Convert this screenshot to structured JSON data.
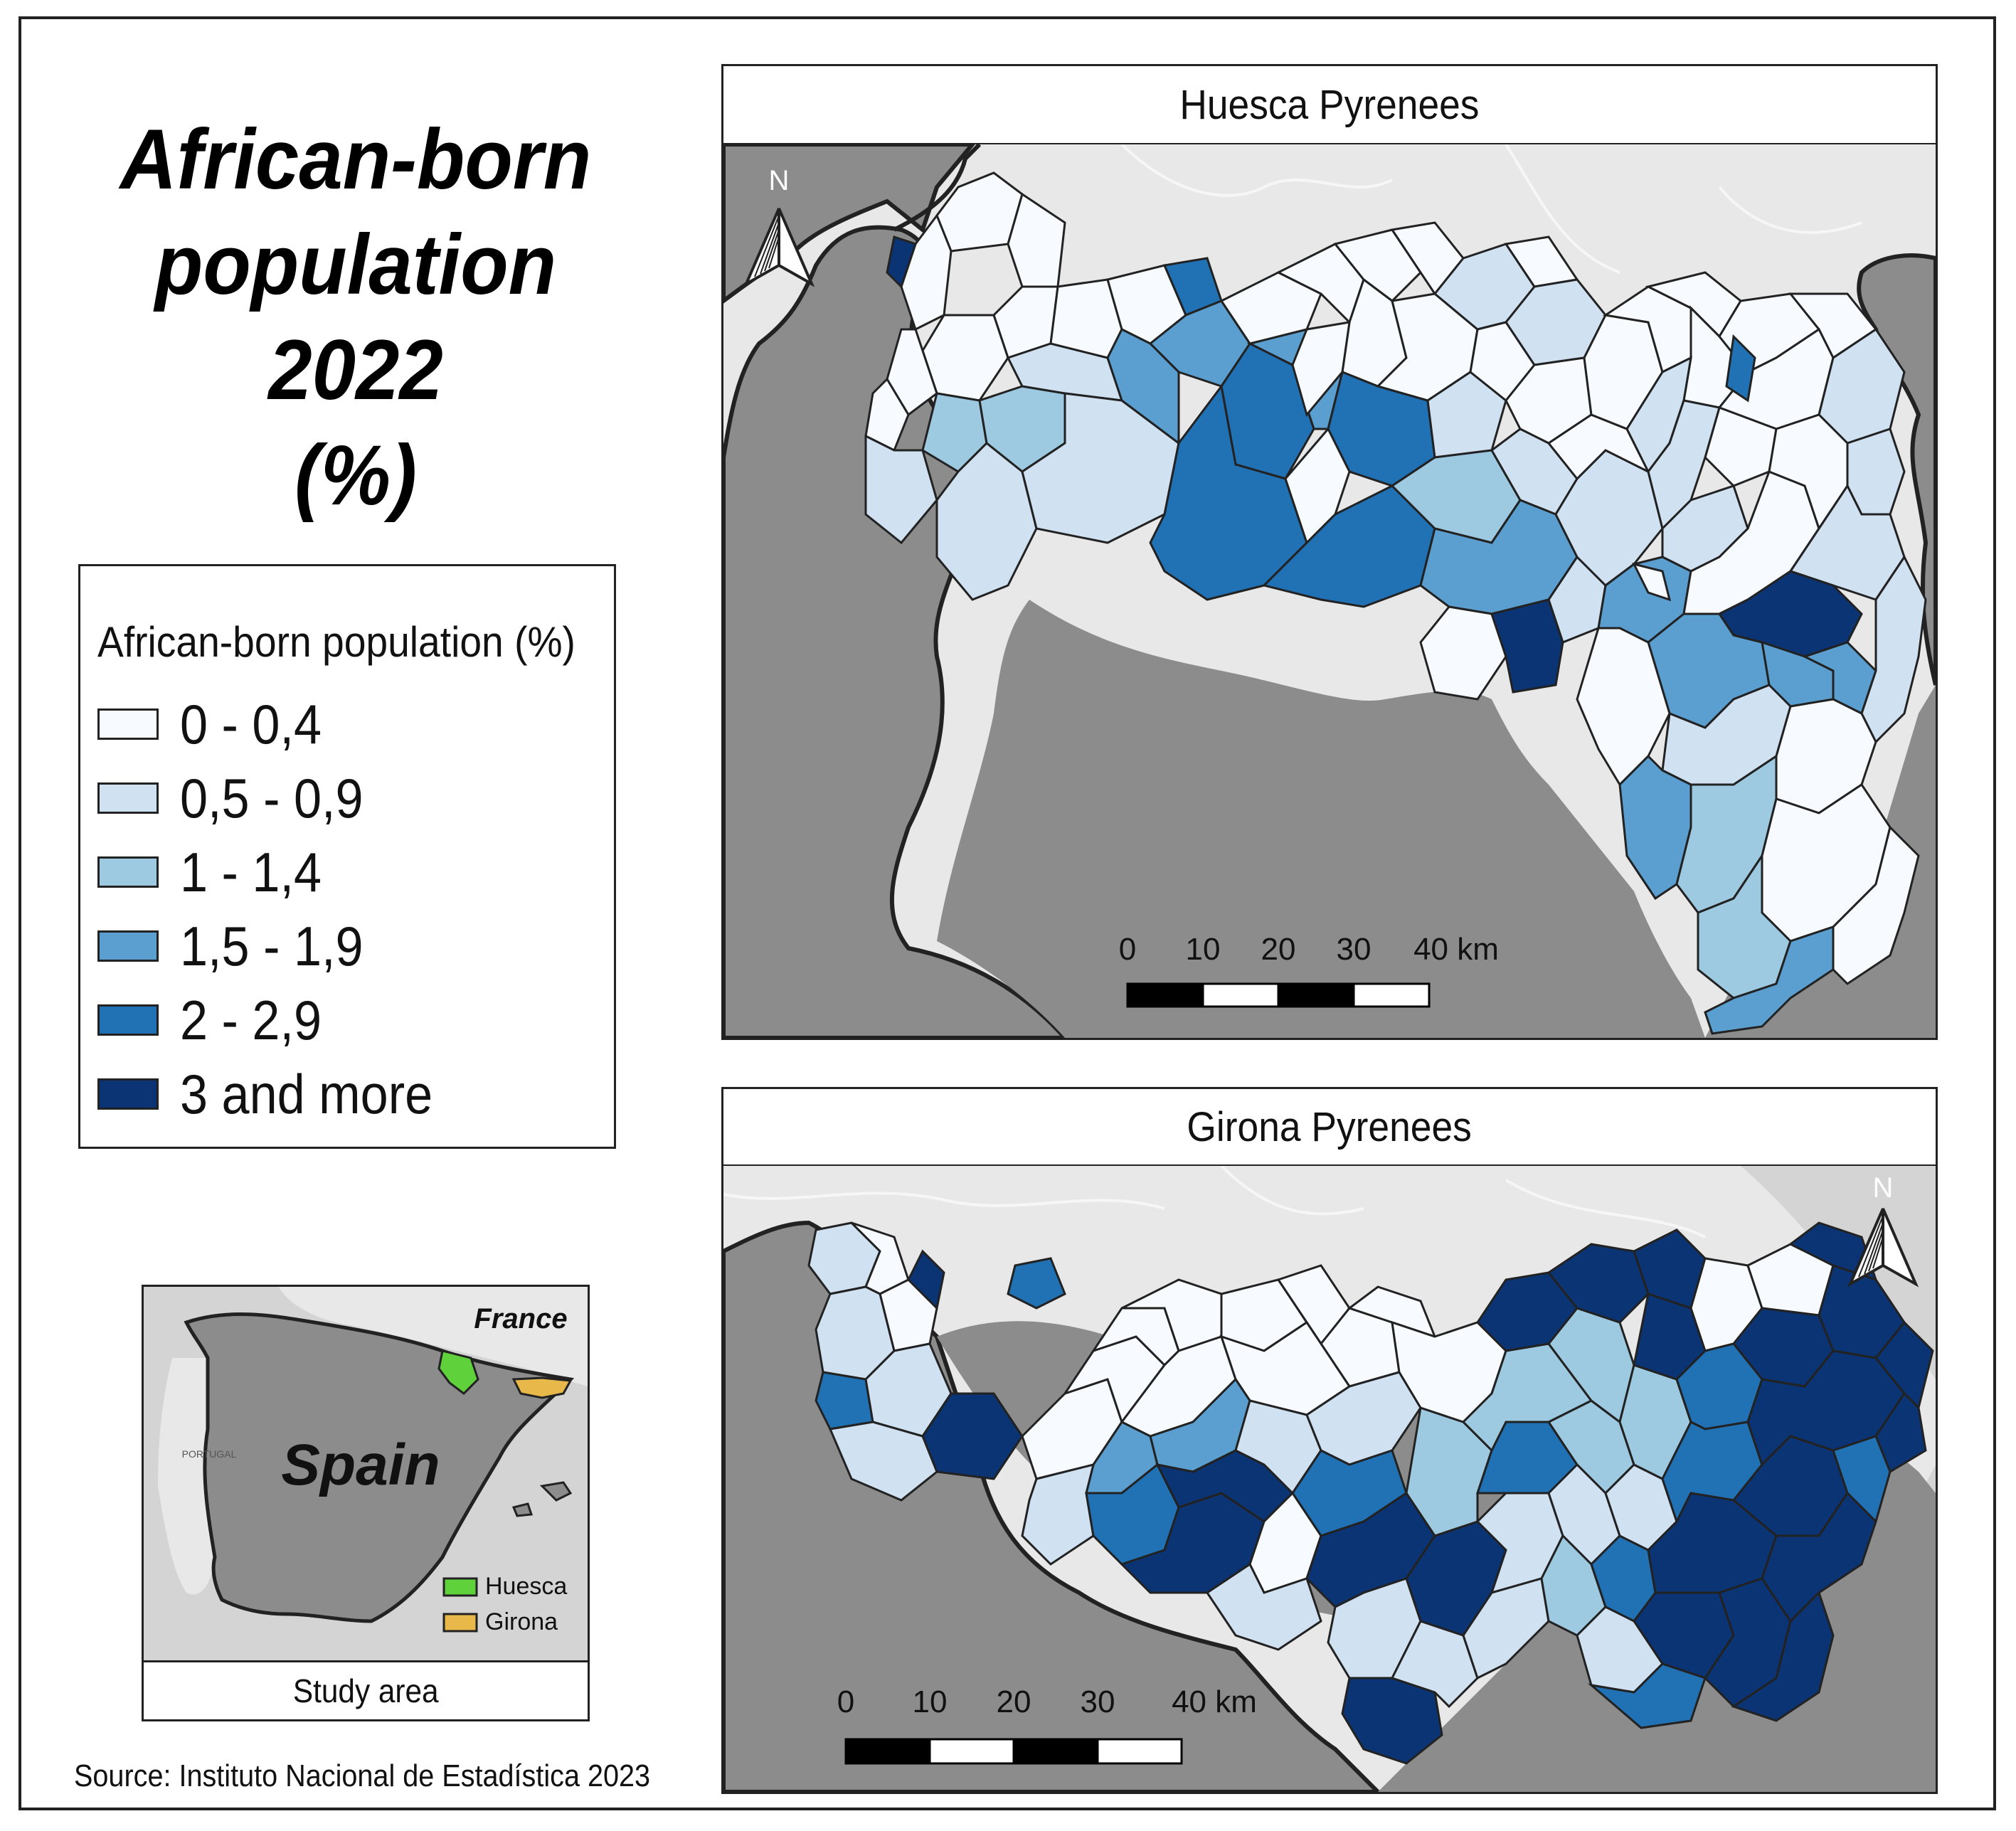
{
  "title": {
    "line1": "African-born",
    "line2": "population 2022",
    "line3": "(%)"
  },
  "legend": {
    "title": "African-born population (%)",
    "classes": [
      {
        "label": "0 - 0,4",
        "color": "#f7fbff"
      },
      {
        "label": "0,5 - 0,9",
        "color": "#d0e1f2"
      },
      {
        "label": "1 - 1,4",
        "color": "#9ecae1"
      },
      {
        "label": "1,5 - 1,9",
        "color": "#5a9fd0"
      },
      {
        "label": "2 - 2,9",
        "color": "#2171b5"
      },
      {
        "label": "3 and more",
        "color": "#0b3474"
      }
    ]
  },
  "maps": {
    "huesca": {
      "title": "Huesca Pyrenees",
      "north_label": "N",
      "scale_labels": [
        "0",
        "10",
        "20",
        "30",
        "40 km"
      ]
    },
    "girona": {
      "title": "Girona Pyrenees",
      "north_label": "N",
      "scale_labels": [
        "0",
        "10",
        "20",
        "30",
        "40 km"
      ]
    }
  },
  "inset": {
    "france_label": "France",
    "spain_label": "Spain",
    "portugal_label": "PORTUGAL",
    "legend": [
      {
        "label": "Huesca",
        "color": "#5fd13a"
      },
      {
        "label": "Girona",
        "color": "#e8b94a"
      }
    ],
    "caption": "Study area"
  },
  "source": "Source: Instituto Nacional de Estadística 2023",
  "colors": {
    "spain_land": "#8c8c8c",
    "france_land": "#e8e8e8",
    "sea": "#d4d4d4",
    "border": "#222222"
  }
}
